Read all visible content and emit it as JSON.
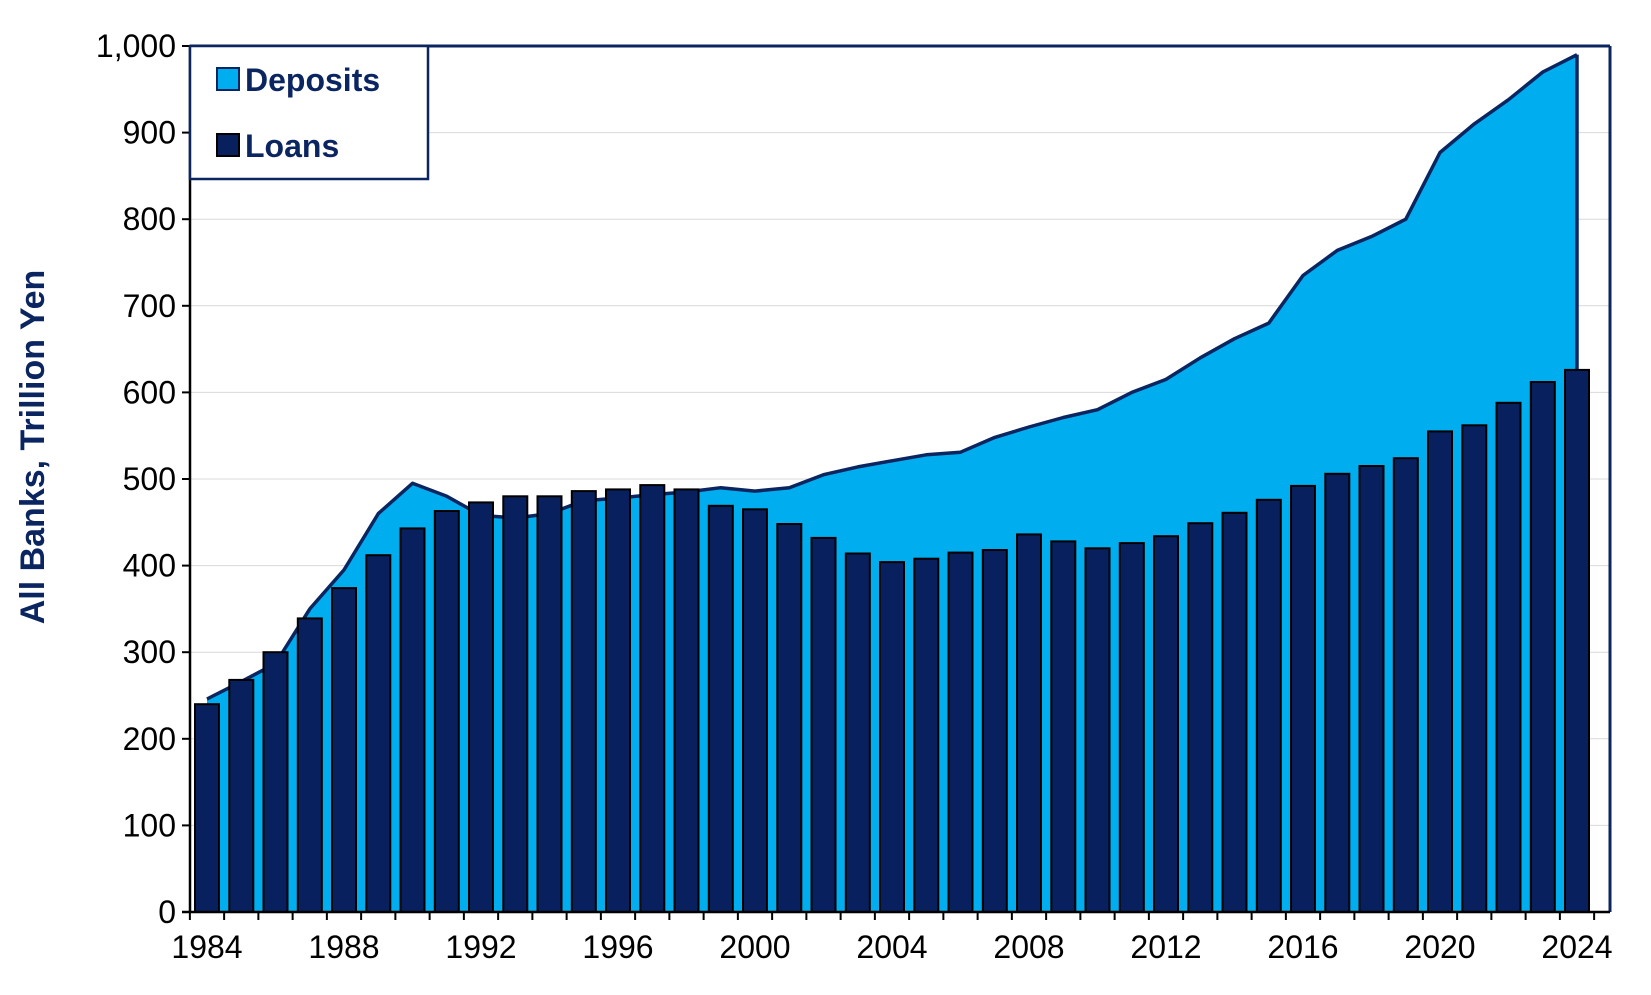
{
  "chart_data": {
    "type": "bar+area",
    "ylabel": "All Banks, Trillion Yen",
    "xlabel": "",
    "ylim": [
      0,
      1000
    ],
    "y_ticks": [
      0,
      100,
      200,
      300,
      400,
      500,
      600,
      700,
      800,
      900,
      1000
    ],
    "y_tick_labels": [
      "0",
      "100",
      "200",
      "300",
      "400",
      "500",
      "600",
      "700",
      "800",
      "900",
      "1,000"
    ],
    "x_tick_labels": [
      "1984",
      "1988",
      "1992",
      "1996",
      "2000",
      "2004",
      "2008",
      "2012",
      "2016",
      "2020",
      "2024"
    ],
    "x": [
      1984,
      1985,
      1986,
      1987,
      1988,
      1989,
      1990,
      1991,
      1992,
      1993,
      1994,
      1995,
      1996,
      1997,
      1998,
      1999,
      2000,
      2001,
      2002,
      2003,
      2004,
      2005,
      2006,
      2007,
      2008,
      2009,
      2010,
      2011,
      2012,
      2013,
      2014,
      2015,
      2016,
      2017,
      2018,
      2019,
      2020,
      2021,
      2022,
      2023,
      2024
    ],
    "legend_position": "top-left",
    "series": [
      {
        "name": "Deposits",
        "kind": "area",
        "color": "#00aeef",
        "edge_color": "#0b2561",
        "values": [
          246,
          266,
          287,
          350,
          395,
          460,
          495,
          480,
          458,
          455,
          460,
          475,
          478,
          482,
          485,
          490,
          486,
          490,
          505,
          514,
          521,
          528,
          531,
          548,
          560,
          571,
          580,
          600,
          615,
          640,
          662,
          680,
          735,
          764,
          780,
          800,
          877,
          910,
          938,
          970,
          990
        ]
      },
      {
        "name": "Loans",
        "kind": "bar",
        "color": "#08215e",
        "edge_color": "#000000",
        "values": [
          240,
          268,
          300,
          339,
          374,
          412,
          443,
          463,
          473,
          480,
          480,
          486,
          488,
          493,
          488,
          469,
          465,
          448,
          432,
          414,
          404,
          408,
          415,
          418,
          436,
          428,
          420,
          426,
          434,
          449,
          461,
          476,
          492,
          506,
          515,
          524,
          555,
          562,
          588,
          612,
          626
        ]
      }
    ]
  }
}
